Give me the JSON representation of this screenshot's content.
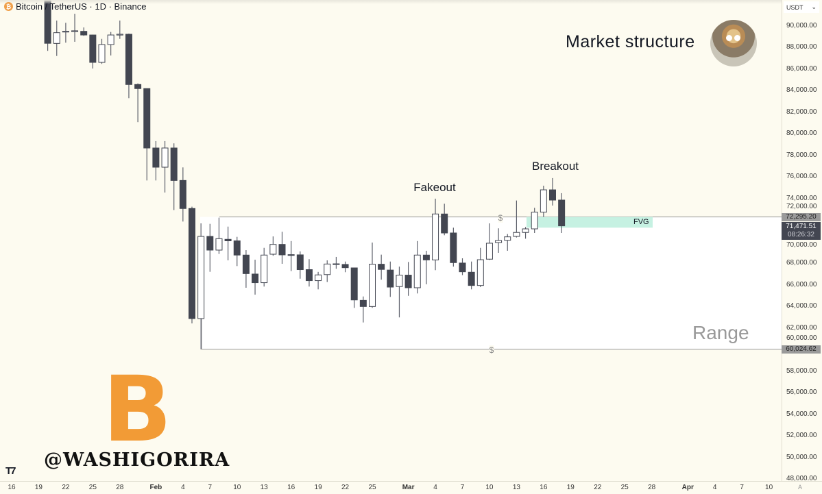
{
  "header": {
    "title": "Bitcoin / TetherUS · 1D · Binance",
    "coin_icon": "bitcoin-icon"
  },
  "price_axis": {
    "currency": "USDT",
    "labels": [
      "90,000.00",
      "88,000.00",
      "86,000.00",
      "84,000.00",
      "82,000.00",
      "80,000.00",
      "78,000.00",
      "76,000.00",
      "74,000.00",
      "72,000.00",
      "70,000.00",
      "68,000.00",
      "66,000.00",
      "64,000.00",
      "62,000.00",
      "60,000.00",
      "58,000.00",
      "56,000.00",
      "54,000.00",
      "52,000.00",
      "50,000.00",
      "48,000.00"
    ],
    "range_high_label": "72,295.20",
    "range_low_label": "60,024.62",
    "current_price": "71,471.51",
    "countdown": "08:26:32",
    "auto_button": "A"
  },
  "annotations": {
    "heading": "Market structure",
    "fakeout": "Fakeout",
    "breakout": "Breakout",
    "range": "Range",
    "fvg": "FVG",
    "dollar": "$",
    "watermark_handle": "@WASHIGORIRA",
    "bitcoin_symbol": "B"
  },
  "colors": {
    "background": "#fdfbf0",
    "bear": "#434651",
    "bull": "#ffffff",
    "wick": "#5d606b",
    "fvg": "#c6f1e2",
    "btc_orange": "#f29b36"
  },
  "chart_data": {
    "type": "candlestick",
    "symbol": "BTCUSDT",
    "interval": "1D",
    "start_date": "2025-01-20",
    "ylim": [
      48000,
      92414
    ],
    "range_high": 72295.2,
    "range_low": 60024.62,
    "fvg": [
      71300,
      72295.2
    ],
    "x_ticks": [
      {
        "label": "16",
        "day": 0
      },
      {
        "label": "19",
        "day": 3
      },
      {
        "label": "22",
        "day": 6
      },
      {
        "label": "25",
        "day": 9
      },
      {
        "label": "28",
        "day": 12
      },
      {
        "label": "Feb",
        "day": 16,
        "bold": true
      },
      {
        "label": "4",
        "day": 19
      },
      {
        "label": "7",
        "day": 22
      },
      {
        "label": "10",
        "day": 25
      },
      {
        "label": "13",
        "day": 28
      },
      {
        "label": "16",
        "day": 31
      },
      {
        "label": "19",
        "day": 34
      },
      {
        "label": "22",
        "day": 37
      },
      {
        "label": "25",
        "day": 40
      },
      {
        "label": "Mar",
        "day": 44,
        "bold": true
      },
      {
        "label": "4",
        "day": 47
      },
      {
        "label": "7",
        "day": 50
      },
      {
        "label": "10",
        "day": 53
      },
      {
        "label": "13",
        "day": 56
      },
      {
        "label": "16",
        "day": 59
      },
      {
        "label": "19",
        "day": 62
      },
      {
        "label": "22",
        "day": 65
      },
      {
        "label": "25",
        "day": 68
      },
      {
        "label": "28",
        "day": 71
      },
      {
        "label": "Apr",
        "day": 75,
        "bold": true
      },
      {
        "label": "4",
        "day": 78
      },
      {
        "label": "7",
        "day": 81
      },
      {
        "label": "10",
        "day": 84
      }
    ],
    "first_candle_day": 4,
    "candles_ohlc": [
      [
        92500,
        93000,
        87700,
        88400
      ],
      [
        88390,
        90508,
        87224,
        89385
      ],
      [
        89460,
        90300,
        88456,
        89520
      ],
      [
        89530,
        91140,
        88540,
        89560
      ],
      [
        89510,
        89870,
        89090,
        89170
      ],
      [
        89170,
        89200,
        86060,
        86630
      ],
      [
        86630,
        88810,
        86490,
        88280
      ],
      [
        88280,
        89450,
        87270,
        89170
      ],
      [
        89200,
        90510,
        88810,
        89240
      ],
      [
        89240,
        89300,
        83310,
        84580
      ],
      [
        84580,
        84680,
        81090,
        84200
      ],
      [
        84200,
        84200,
        75680,
        78690
      ],
      [
        78690,
        79330,
        75680,
        76910
      ],
      [
        76910,
        79330,
        74560,
        78690
      ],
      [
        78690,
        79120,
        72930,
        75680
      ],
      [
        75680,
        76890,
        71870,
        73080
      ],
      [
        73080,
        73250,
        62420,
        62870
      ],
      [
        62870,
        71700,
        60020,
        70490
      ],
      [
        70490,
        71656,
        67208,
        69222
      ],
      [
        69222,
        72230,
        68860,
        70283
      ],
      [
        70220,
        71400,
        68270,
        70080
      ],
      [
        70080,
        70450,
        67740,
        68760
      ],
      [
        68760,
        69220,
        65730,
        67040
      ],
      [
        67000,
        68330,
        65090,
        66200
      ],
      [
        66200,
        69430,
        65840,
        68760
      ],
      [
        68840,
        70490,
        68690,
        69750
      ],
      [
        69750,
        70920,
        67950,
        68780
      ],
      [
        68800,
        70060,
        67270,
        68780
      ],
      [
        68780,
        69100,
        66570,
        67410
      ],
      [
        67410,
        68380,
        65840,
        66390
      ],
      [
        66390,
        67200,
        65580,
        66920
      ],
      [
        66950,
        68270,
        66260,
        67930
      ],
      [
        67950,
        68590,
        67490,
        67950
      ],
      [
        67890,
        68160,
        67170,
        67590
      ],
      [
        67570,
        67590,
        63860,
        64600
      ],
      [
        64560,
        64920,
        62510,
        63990
      ],
      [
        63990,
        69920,
        63860,
        67910
      ],
      [
        67910,
        68800,
        66480,
        67430
      ],
      [
        67370,
        68160,
        64880,
        65790
      ],
      [
        65840,
        67690,
        62980,
        66900
      ],
      [
        66900,
        68120,
        64980,
        65730
      ],
      [
        65730,
        70060,
        65200,
        68760
      ],
      [
        68760,
        69160,
        66050,
        68310
      ],
      [
        68310,
        73990,
        67360,
        72570
      ],
      [
        72570,
        73520,
        70600,
        70810
      ],
      [
        70810,
        71300,
        67690,
        68060
      ],
      [
        68020,
        68460,
        66900,
        67210
      ],
      [
        67170,
        68160,
        65580,
        65940
      ],
      [
        65940,
        69430,
        65790,
        68330
      ],
      [
        68380,
        71700,
        68310,
        69860
      ],
      [
        69920,
        71240,
        68970,
        70110
      ],
      [
        70130,
        70710,
        69160,
        70450
      ],
      [
        70490,
        73820,
        70390,
        70860
      ],
      [
        70860,
        71360,
        70280,
        71190
      ],
      [
        71190,
        73140,
        70810,
        72740
      ],
      [
        72740,
        75190,
        72290,
        74810
      ],
      [
        74810,
        75900,
        73350,
        73860
      ],
      [
        73860,
        74500,
        70810,
        71471.51
      ]
    ]
  }
}
